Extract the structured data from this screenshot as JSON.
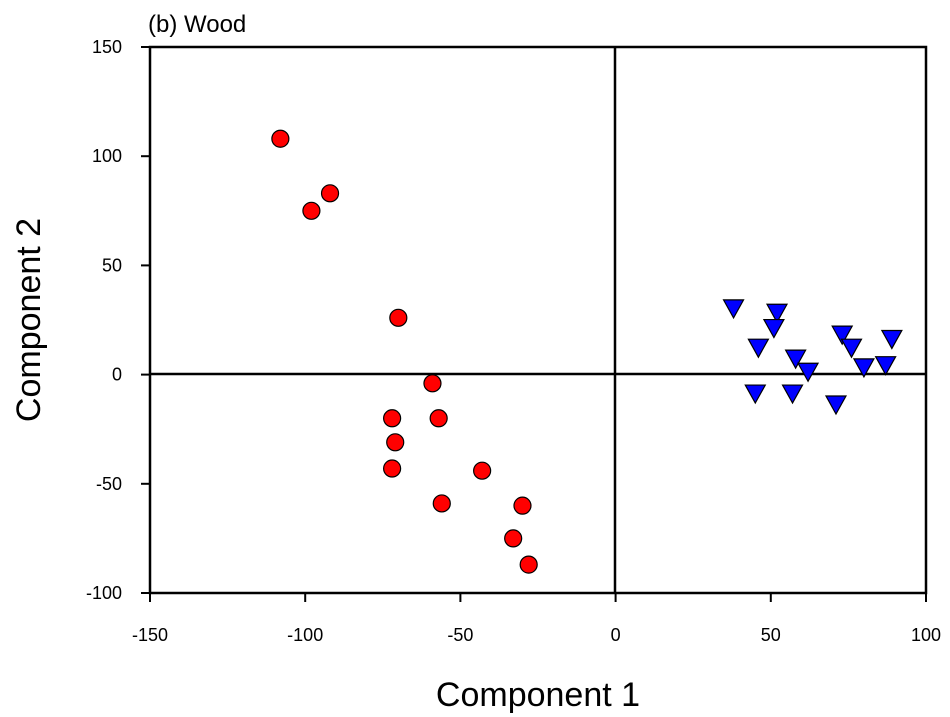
{
  "chart_data": {
    "type": "scatter",
    "title": "(b) Wood",
    "xlabel": "Component 1",
    "ylabel": "Component 2",
    "xlim": [
      -150,
      100
    ],
    "ylim": [
      -100,
      150
    ],
    "xticks": [
      -150,
      -100,
      -50,
      0,
      50,
      100
    ],
    "yticks": [
      -100,
      -50,
      0,
      50,
      100,
      150
    ],
    "zero_lines": true,
    "grid": false,
    "legend": "none",
    "series": [
      {
        "marker": "circle",
        "color": "#ff0000",
        "points": [
          {
            "x": -108,
            "y": 108
          },
          {
            "x": -92,
            "y": 83
          },
          {
            "x": -98,
            "y": 75
          },
          {
            "x": -70,
            "y": 26
          },
          {
            "x": -59,
            "y": -4
          },
          {
            "x": -72,
            "y": -20
          },
          {
            "x": -57,
            "y": -20
          },
          {
            "x": -71,
            "y": -31
          },
          {
            "x": -72,
            "y": -43
          },
          {
            "x": -43,
            "y": -44
          },
          {
            "x": -56,
            "y": -59
          },
          {
            "x": -30,
            "y": -60
          },
          {
            "x": -33,
            "y": -75
          },
          {
            "x": -28,
            "y": -87
          }
        ]
      },
      {
        "marker": "triangle-down",
        "color": "#0000ff",
        "points": [
          {
            "x": 38,
            "y": 31
          },
          {
            "x": 52,
            "y": 29
          },
          {
            "x": 51,
            "y": 22
          },
          {
            "x": 46,
            "y": 13
          },
          {
            "x": 58,
            "y": 8
          },
          {
            "x": 62,
            "y": 2
          },
          {
            "x": 45,
            "y": -8
          },
          {
            "x": 57,
            "y": -8
          },
          {
            "x": 73,
            "y": 19
          },
          {
            "x": 76,
            "y": 13
          },
          {
            "x": 80,
            "y": 4
          },
          {
            "x": 87,
            "y": 5
          },
          {
            "x": 89,
            "y": 17
          },
          {
            "x": 71,
            "y": -13
          }
        ]
      }
    ]
  }
}
